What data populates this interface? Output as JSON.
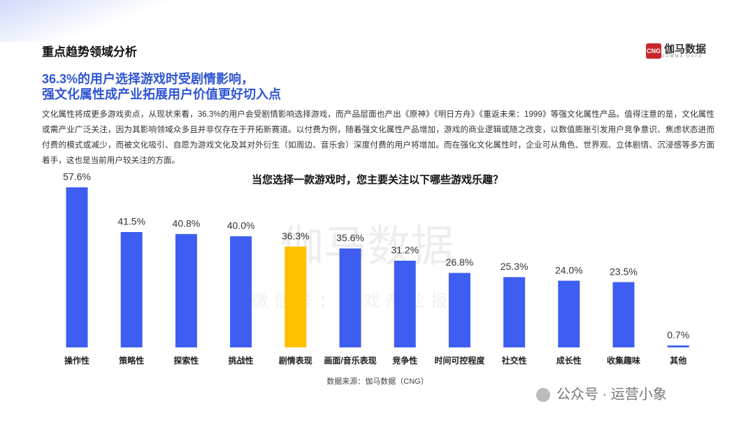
{
  "header": {
    "title": "重点趋势领域分析",
    "logo_icon": "CNG",
    "logo_name": "伽马数据",
    "logo_en": "GAMMA DATA"
  },
  "subtitle": [
    "36.3%的用户选择游戏时受剧情影响，",
    "强文化属性成产业拓展用户价值更好切入点"
  ],
  "paragraph": "文化属性将成更多游戏卖点，从现状来看，36.3%的用户会受剧情影响选择游戏，而产品层面也产出《原神》《明日方舟》《重返未来：1999》等强文化属性产品。值得注意的是，文化属性或需产业广泛关注，因为其影响领域众多且并非仅存在于开拓新赛道。以付费为例，随着强文化属性产品增加，游戏的商业逻辑或随之改变，以数值膨胀引发用户竞争意识、焦虑状态进而付费的模式或减少，而被文化吸引、自愿为游戏文化及其对外衍生（如周边、音乐会）深度付费的用户将增加。而在强化文化属性时，企业可从角色、世界观、立体剧情、沉浸感等多方面着手，这也是当前用户较关注的方面。",
  "watermark": {
    "main": "伽马数据",
    "sub": "微信号：游戏产业报告",
    "account": "公众号 · 运营小象"
  },
  "source": "数据来源：伽马数据（CNG）",
  "chart_data": {
    "type": "bar",
    "title": "当您选择一款游戏时，您主要关注以下哪些游戏乐趣？",
    "categories": [
      "操作性",
      "策略性",
      "探索性",
      "挑战性",
      "剧情表现",
      "画面/音乐表现",
      "竞争性",
      "时间可控程度",
      "社交性",
      "成长性",
      "收集趣味",
      "其他"
    ],
    "values": [
      57.6,
      41.5,
      40.8,
      40.0,
      36.3,
      35.6,
      31.2,
      26.8,
      25.3,
      24.0,
      23.5,
      0.7
    ],
    "value_labels": [
      "57.6%",
      "41.5%",
      "40.8%",
      "40.0%",
      "36.3%",
      "35.6%",
      "31.2%",
      "26.8%",
      "25.3%",
      "24.0%",
      "23.5%",
      "0.7%"
    ],
    "colors": [
      "#3d5ef0",
      "#3d5ef0",
      "#3d5ef0",
      "#3d5ef0",
      "#ffc000",
      "#3d5ef0",
      "#3d5ef0",
      "#3d5ef0",
      "#3d5ef0",
      "#3d5ef0",
      "#3d5ef0",
      "#3d5ef0"
    ]
  }
}
